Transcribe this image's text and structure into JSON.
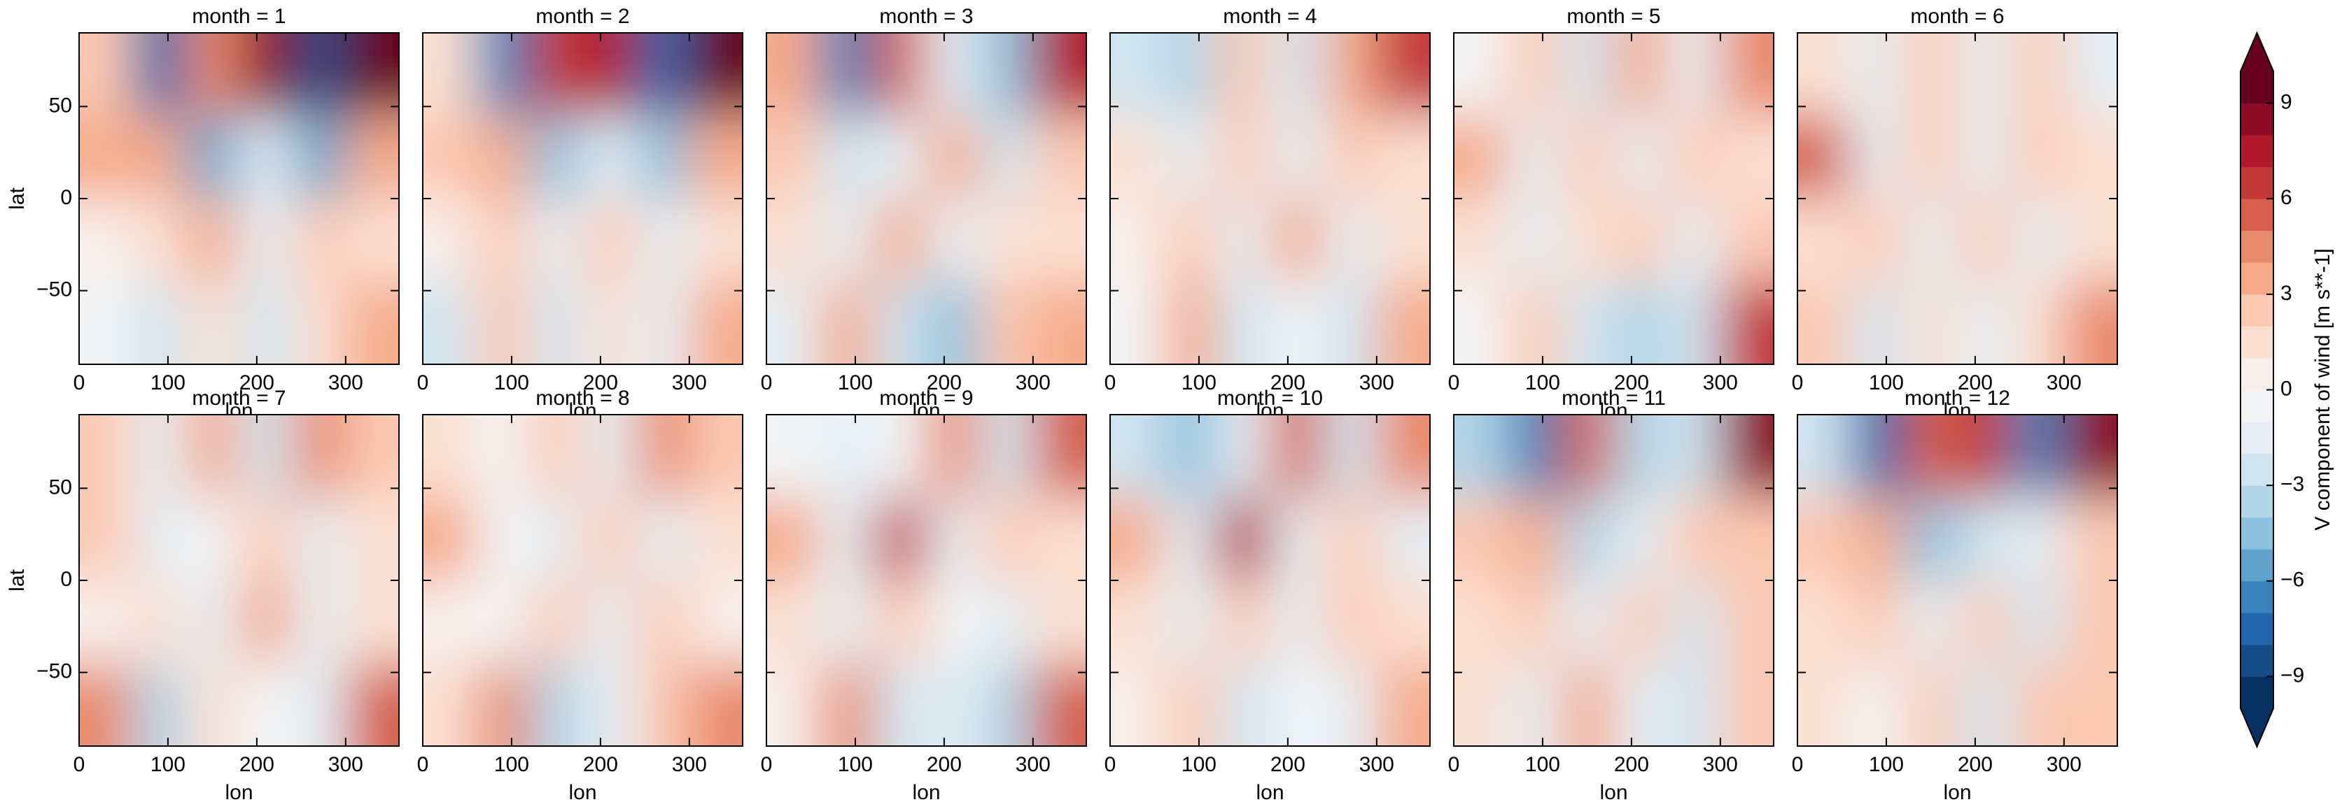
{
  "chart_data": {
    "type": "contour",
    "xlabel": "lon",
    "ylabel": "lat",
    "colorbar_label": "V component of wind [m s**-1]",
    "lon": [
      30,
      90,
      150,
      210,
      270,
      330
    ],
    "lat": [
      67.5,
      22.5,
      -22.5,
      -67.5
    ],
    "xlim": [
      0,
      360
    ],
    "xticks": [
      0,
      100,
      200,
      300
    ],
    "ylim": [
      -90,
      90
    ],
    "yticks": [
      {
        "value": -50,
        "label": "−50"
      },
      0,
      50
    ],
    "levels": [
      -10,
      -9,
      -8,
      -7,
      -6,
      -5,
      -4,
      -3,
      -2,
      -1,
      0,
      1,
      2,
      3,
      4,
      5,
      6,
      7,
      8,
      9,
      10
    ],
    "colors": [
      "#053061",
      "#134c87",
      "#2166ac",
      "#3a82bc",
      "#5fa3cc",
      "#8dc0dd",
      "#b2d5e7",
      "#d1e5f0",
      "#e4eef4",
      "#f2f4f6",
      "#f8efeb",
      "#fbe0d2",
      "#fcc9b2",
      "#f6aa8a",
      "#ea8a6c",
      "#d6604d",
      "#c3393a",
      "#b2182b",
      "#8d0c25",
      "#67001f"
    ],
    "cticks": [
      {
        "value": -9,
        "label": "−9"
      },
      {
        "value": -6,
        "label": "−6"
      },
      {
        "value": -3,
        "label": "−3"
      },
      0,
      3,
      6,
      9
    ],
    "panels": [
      {
        "title": "month = 1",
        "values": [
          [
            2,
            -8,
            4,
            8,
            -9,
            9
          ],
          [
            3,
            3,
            -6,
            -2,
            -6,
            3
          ],
          [
            0,
            1,
            3,
            -2,
            2,
            1
          ],
          [
            -1,
            -3,
            1,
            -3,
            1,
            3
          ]
        ]
      },
      {
        "title": "month = 2",
        "values": [
          [
            1,
            -7,
            6,
            7,
            -8,
            9
          ],
          [
            2,
            3,
            -5,
            -2,
            -5,
            3
          ],
          [
            0,
            2,
            -2,
            2,
            -2,
            1
          ],
          [
            -3,
            2,
            -3,
            1,
            -2,
            3
          ]
        ]
      },
      {
        "title": "month = 3",
        "values": [
          [
            3,
            -7,
            5,
            -2,
            -5,
            7
          ],
          [
            2,
            -3,
            -2,
            3,
            -3,
            2
          ],
          [
            1,
            -2,
            3,
            -2,
            1,
            1
          ],
          [
            -2,
            3,
            -3,
            -5,
            2,
            3
          ]
        ]
      },
      {
        "title": "month = 4",
        "values": [
          [
            -3,
            -4,
            2,
            -3,
            3,
            6
          ],
          [
            1,
            -2,
            2,
            -2,
            2,
            1
          ],
          [
            0,
            2,
            -2,
            3,
            -2,
            1
          ],
          [
            -1,
            3,
            -3,
            -1,
            -3,
            3
          ]
        ]
      },
      {
        "title": "month = 5",
        "values": [
          [
            -1,
            2,
            -3,
            3,
            -2,
            4
          ],
          [
            3,
            -2,
            2,
            -2,
            2,
            1
          ],
          [
            1,
            -2,
            1,
            2,
            -2,
            2
          ],
          [
            -1,
            2,
            -3,
            -4,
            -3,
            6
          ]
        ]
      },
      {
        "title": "month = 6",
        "values": [
          [
            1,
            -2,
            2,
            -2,
            2,
            -2
          ],
          [
            5,
            -2,
            2,
            -2,
            2,
            1
          ],
          [
            1,
            2,
            -2,
            2,
            -2,
            1
          ],
          [
            2,
            -3,
            1,
            -2,
            1,
            4
          ]
        ]
      },
      {
        "title": "month = 7",
        "values": [
          [
            2,
            -2,
            3,
            -3,
            4,
            2
          ],
          [
            2,
            -2,
            -1,
            2,
            -2,
            1
          ],
          [
            0,
            1,
            -2,
            3,
            -2,
            1
          ],
          [
            4,
            -4,
            1,
            -1,
            -2,
            5
          ]
        ]
      },
      {
        "title": "month = 8",
        "values": [
          [
            1,
            -1,
            2,
            -2,
            4,
            2
          ],
          [
            3,
            -1,
            -2,
            2,
            -2,
            1
          ],
          [
            0,
            -1,
            2,
            -2,
            2,
            0
          ],
          [
            1,
            4,
            -4,
            -2,
            2,
            4
          ]
        ]
      },
      {
        "title": "month = 9",
        "values": [
          [
            -1,
            -2,
            -1,
            4,
            -3,
            5
          ],
          [
            3,
            -2,
            6,
            -2,
            2,
            1
          ],
          [
            1,
            -2,
            2,
            -1,
            -2,
            1
          ],
          [
            0,
            4,
            -3,
            -2,
            -4,
            5
          ]
        ]
      },
      {
        "title": "month = 10",
        "values": [
          [
            -3,
            -5,
            -2,
            5,
            -3,
            4
          ],
          [
            3,
            -2,
            7,
            -2,
            2,
            -2
          ],
          [
            1,
            -2,
            2,
            -2,
            2,
            1
          ],
          [
            0,
            2,
            -3,
            -1,
            -2,
            3
          ]
        ]
      },
      {
        "title": "month = 11",
        "values": [
          [
            -4,
            -7,
            5,
            -4,
            -3,
            8
          ],
          [
            2,
            3,
            -4,
            -2,
            2,
            2
          ],
          [
            1,
            2,
            -2,
            2,
            -3,
            2
          ],
          [
            1,
            -2,
            3,
            -2,
            -3,
            2
          ]
        ]
      },
      {
        "title": "month = 12",
        "values": [
          [
            -3,
            -8,
            5,
            6,
            -7,
            8
          ],
          [
            2,
            3,
            -5,
            -3,
            -2,
            2
          ],
          [
            1,
            2,
            -2,
            2,
            -3,
            2
          ],
          [
            1,
            -1,
            2,
            -3,
            2,
            2
          ]
        ]
      }
    ]
  }
}
